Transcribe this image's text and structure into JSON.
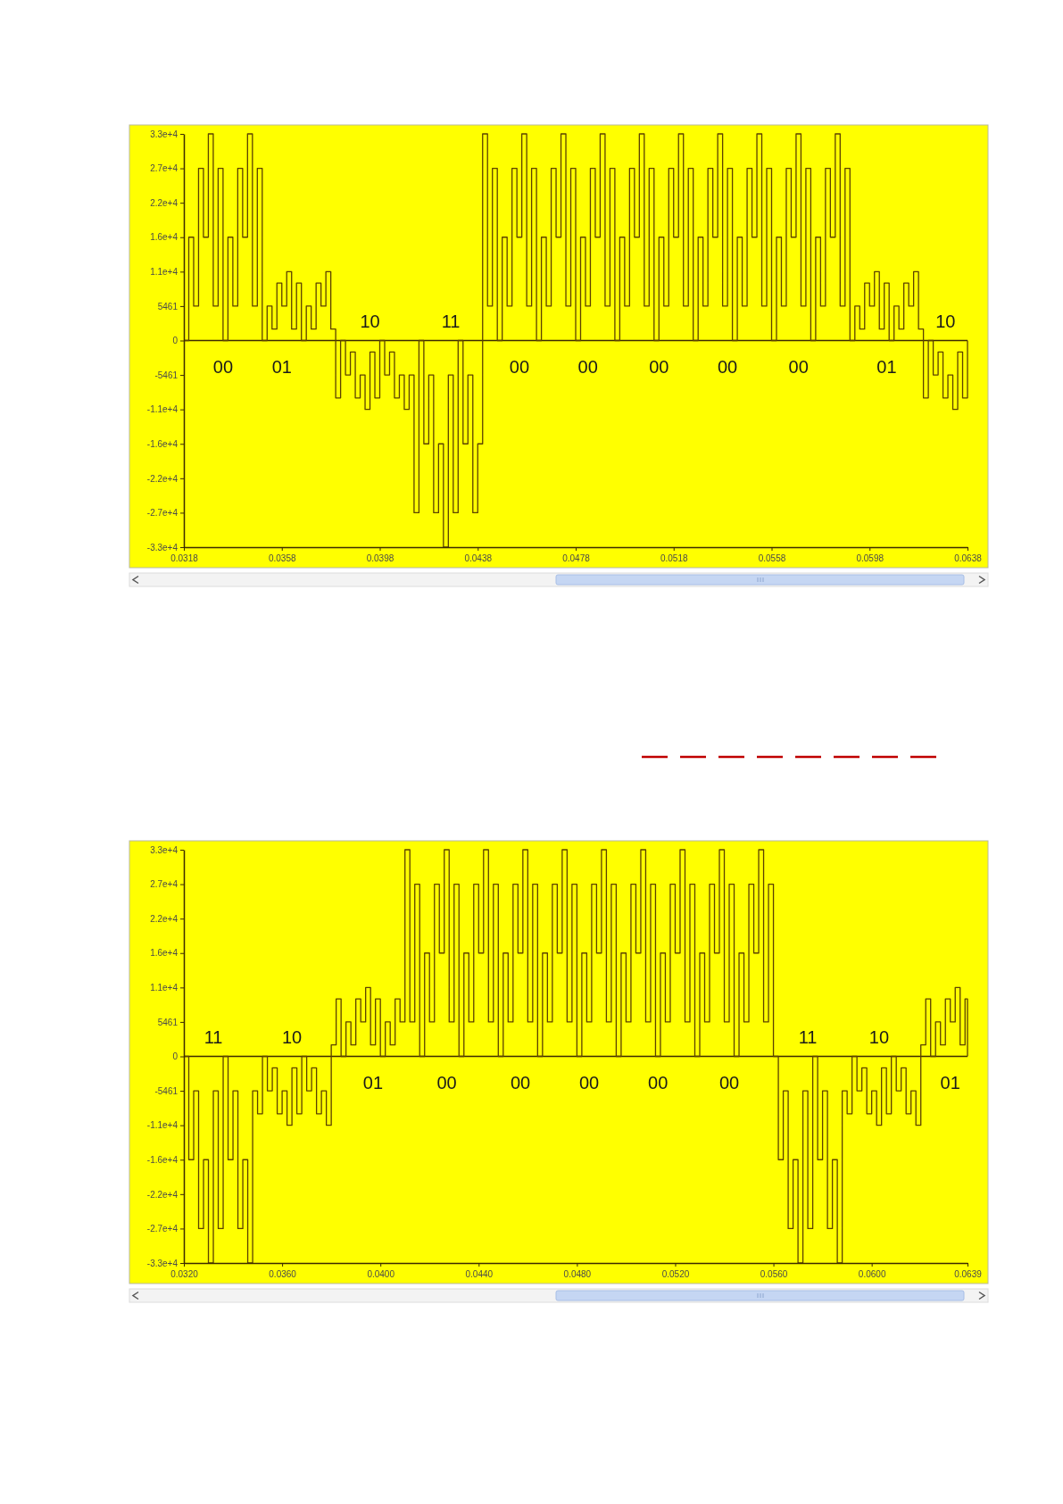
{
  "chart_data": [
    {
      "type": "step",
      "color": "#5c4200",
      "x": [
        0.0318,
        0.032,
        0.0322,
        0.0324,
        0.0326,
        0.0328,
        0.033,
        0.0332,
        0.0334,
        0.0336,
        0.0338,
        0.034,
        0.0342,
        0.0344,
        0.0346,
        0.0348,
        0.035,
        0.0352,
        0.0354,
        0.0356,
        0.0358,
        0.036,
        0.0362,
        0.0364,
        0.0366,
        0.0368,
        0.037,
        0.0372,
        0.0374,
        0.0376,
        0.0378,
        0.038,
        0.0382,
        0.0384,
        0.0386,
        0.0388,
        0.039,
        0.0392,
        0.0394,
        0.0396,
        0.0398,
        0.04,
        0.0402,
        0.0404,
        0.0406,
        0.0408,
        0.041,
        0.0412,
        0.0414,
        0.0416,
        0.0418,
        0.042,
        0.0422,
        0.0424,
        0.0426,
        0.0428,
        0.043,
        0.0432,
        0.0434,
        0.0436,
        0.0438,
        0.044,
        0.0442,
        0.0444,
        0.0446,
        0.0448,
        0.045,
        0.0452,
        0.0454,
        0.0456,
        0.0458,
        0.046,
        0.0462,
        0.0464,
        0.0466,
        0.0468,
        0.047,
        0.0472,
        0.0474,
        0.0476,
        0.0478,
        0.048,
        0.0482,
        0.0484,
        0.0486,
        0.0488,
        0.049,
        0.0492,
        0.0494,
        0.0496,
        0.0498,
        0.05,
        0.0502,
        0.0504,
        0.0506,
        0.0508,
        0.051,
        0.0512,
        0.0514,
        0.0516,
        0.0518,
        0.052,
        0.0522,
        0.0524,
        0.0526,
        0.0528,
        0.053,
        0.0532,
        0.0534,
        0.0536,
        0.0538,
        0.054,
        0.0542,
        0.0544,
        0.0546,
        0.0548,
        0.055,
        0.0552,
        0.0554,
        0.0556,
        0.0558,
        0.056,
        0.0562,
        0.0564,
        0.0566,
        0.0568,
        0.057,
        0.0572,
        0.0574,
        0.0576,
        0.0578,
        0.058,
        0.0582,
        0.0584,
        0.0586,
        0.0588,
        0.059,
        0.0592,
        0.0594,
        0.0596,
        0.0598,
        0.06,
        0.0602,
        0.0604,
        0.0606,
        0.0608,
        0.061,
        0.0612,
        0.0614,
        0.0616,
        0.0618,
        0.062,
        0.0622,
        0.0624,
        0.0626,
        0.0628,
        0.063,
        0.0632,
        0.0634,
        0.0636,
        0.0638
      ],
      "values": [
        0,
        16384,
        5461,
        27306,
        16384,
        32767,
        5461,
        27306,
        0,
        16384,
        5461,
        27306,
        16384,
        32767,
        5461,
        27306,
        0,
        5461,
        1820,
        9100,
        5461,
        10922,
        1820,
        9100,
        0,
        5461,
        1820,
        9100,
        5461,
        10922,
        1820,
        -9100,
        0,
        -5461,
        -1820,
        -9100,
        -5461,
        -10922,
        -1820,
        -9100,
        0,
        -5461,
        -1820,
        -9100,
        -5461,
        -10922,
        -5461,
        -27306,
        0,
        -16384,
        -5461,
        -27306,
        -16384,
        -32767,
        -5461,
        -27306,
        0,
        -16384,
        -5461,
        -27306,
        -16384,
        32767,
        5461,
        27306,
        0,
        16384,
        5461,
        27306,
        16384,
        32767,
        5461,
        27306,
        0,
        16384,
        5461,
        27306,
        16384,
        32767,
        5461,
        27306,
        0,
        16384,
        5461,
        27306,
        16384,
        32767,
        5461,
        27306,
        0,
        16384,
        5461,
        27306,
        16384,
        32767,
        5461,
        27306,
        0,
        16384,
        5461,
        27306,
        16384,
        32767,
        5461,
        27306,
        0,
        16384,
        5461,
        27306,
        16384,
        32767,
        5461,
        27306,
        0,
        16384,
        5461,
        27306,
        16384,
        32767,
        5461,
        27306,
        0,
        16384,
        5461,
        27306,
        16384,
        32767,
        5461,
        27306,
        0,
        16384,
        5461,
        27306,
        16384,
        32767,
        5461,
        27306,
        0,
        5461,
        1820,
        9100,
        5461,
        10922,
        1820,
        9100,
        0,
        5461,
        1820,
        9100,
        5461,
        10922,
        1820,
        -9100,
        0,
        -5461,
        -1820,
        -9100,
        -5461,
        -10922,
        -1820,
        -9100,
        0
      ],
      "xlim": [
        0.0318,
        0.0638
      ],
      "ylim": [
        -32767,
        32767
      ],
      "xticks": [
        0.0318,
        0.0358,
        0.0398,
        0.0438,
        0.0478,
        0.0518,
        0.0558,
        0.0598,
        0.0638
      ],
      "yticks": [
        {
          "value": 32767,
          "label": "3.3e+4"
        },
        {
          "value": 27306,
          "label": "2.7e+4"
        },
        {
          "value": 21845,
          "label": "2.2e+4"
        },
        {
          "value": 16384,
          "label": "1.6e+4"
        },
        {
          "value": 10922,
          "label": "1.1e+4"
        },
        5461,
        0,
        -5461,
        {
          "value": -10922,
          "label": "-1.1e+4"
        },
        {
          "value": -16384,
          "label": "-1.6e+4"
        },
        {
          "value": -21845,
          "label": "-2.2e+4"
        },
        {
          "value": -27306,
          "label": "-2.7e+4"
        },
        {
          "value": -32767,
          "label": "-3.3e+4"
        }
      ],
      "ref_lines": [
        {
          "axis": "y",
          "value": 0,
          "color": "#3d2b00"
        }
      ],
      "annotations": [
        {
          "text": "00",
          "x": 0.0334,
          "y": 0
        },
        {
          "text": "01",
          "x": 0.0358,
          "y": 0
        },
        {
          "text": "10",
          "x": 0.0394,
          "y": 0
        },
        {
          "text": "11",
          "x": 0.0427,
          "y": 0
        },
        {
          "text": "00",
          "x": 0.0455,
          "y": 0
        },
        {
          "text": "00",
          "x": 0.0483,
          "y": 0
        },
        {
          "text": "00",
          "x": 0.0512,
          "y": 0
        },
        {
          "text": "00",
          "x": 0.054,
          "y": 0
        },
        {
          "text": "00",
          "x": 0.0569,
          "y": 0
        },
        {
          "text": "01",
          "x": 0.0605,
          "y": 0
        },
        {
          "text": "10",
          "x": 0.0629,
          "y": 0
        }
      ]
    },
    {
      "type": "step",
      "color": "#5c4200",
      "x": [
        0.032,
        0.0322,
        0.0324,
        0.0326,
        0.0328,
        0.033,
        0.0332,
        0.0334,
        0.0336,
        0.0338,
        0.034,
        0.0342,
        0.0344,
        0.0346,
        0.0348,
        0.035,
        0.0352,
        0.0354,
        0.0356,
        0.0358,
        0.036,
        0.0362,
        0.0364,
        0.0366,
        0.0368,
        0.037,
        0.0372,
        0.0374,
        0.0376,
        0.0378,
        0.038,
        0.0382,
        0.0384,
        0.0386,
        0.0388,
        0.039,
        0.0392,
        0.0394,
        0.0396,
        0.0398,
        0.04,
        0.0402,
        0.0404,
        0.0406,
        0.0408,
        0.041,
        0.0412,
        0.0414,
        0.0416,
        0.0418,
        0.042,
        0.0422,
        0.0424,
        0.0426,
        0.0428,
        0.043,
        0.0432,
        0.0434,
        0.0436,
        0.0438,
        0.044,
        0.0442,
        0.0444,
        0.0446,
        0.0448,
        0.045,
        0.0452,
        0.0454,
        0.0456,
        0.0458,
        0.046,
        0.0462,
        0.0464,
        0.0466,
        0.0468,
        0.047,
        0.0472,
        0.0474,
        0.0476,
        0.0478,
        0.048,
        0.0482,
        0.0484,
        0.0486,
        0.0488,
        0.049,
        0.0492,
        0.0494,
        0.0496,
        0.0498,
        0.05,
        0.0502,
        0.0504,
        0.0506,
        0.0508,
        0.051,
        0.0512,
        0.0514,
        0.0516,
        0.0518,
        0.052,
        0.0522,
        0.0524,
        0.0526,
        0.0528,
        0.053,
        0.0532,
        0.0534,
        0.0536,
        0.0538,
        0.054,
        0.0542,
        0.0544,
        0.0546,
        0.0548,
        0.055,
        0.0552,
        0.0554,
        0.0556,
        0.0558,
        0.056,
        0.0562,
        0.0564,
        0.0566,
        0.0568,
        0.057,
        0.0572,
        0.0574,
        0.0576,
        0.0578,
        0.058,
        0.0582,
        0.0584,
        0.0586,
        0.0588,
        0.059,
        0.0592,
        0.0594,
        0.0596,
        0.0598,
        0.06,
        0.0602,
        0.0604,
        0.0606,
        0.0608,
        0.061,
        0.0612,
        0.0614,
        0.0616,
        0.0618,
        0.062,
        0.0622,
        0.0624,
        0.0626,
        0.0628,
        0.063,
        0.0632,
        0.0634,
        0.0636,
        0.0638,
        0.0639
      ],
      "values": [
        0,
        -16384,
        -5461,
        -27306,
        -16384,
        -32767,
        -5461,
        -27306,
        0,
        -16384,
        -5461,
        -27306,
        -16384,
        -32767,
        -5461,
        -9100,
        0,
        -5461,
        -1820,
        -9100,
        -5461,
        -10922,
        -1820,
        -9100,
        0,
        -5461,
        -1820,
        -9100,
        -5461,
        -10922,
        1820,
        9100,
        0,
        5461,
        1820,
        9100,
        5461,
        10922,
        1820,
        9100,
        0,
        5461,
        1820,
        9100,
        5461,
        32767,
        5461,
        27306,
        0,
        16384,
        5461,
        27306,
        16384,
        32767,
        5461,
        27306,
        0,
        16384,
        5461,
        27306,
        16384,
        32767,
        5461,
        27306,
        0,
        16384,
        5461,
        27306,
        16384,
        32767,
        5461,
        27306,
        0,
        16384,
        5461,
        27306,
        16384,
        32767,
        5461,
        27306,
        0,
        16384,
        5461,
        27306,
        16384,
        32767,
        5461,
        27306,
        0,
        16384,
        5461,
        27306,
        16384,
        32767,
        5461,
        27306,
        0,
        16384,
        5461,
        27306,
        16384,
        32767,
        5461,
        27306,
        0,
        16384,
        5461,
        27306,
        16384,
        32767,
        5461,
        27306,
        0,
        16384,
        5461,
        27306,
        16384,
        32767,
        5461,
        27306,
        0,
        -16384,
        -5461,
        -27306,
        -16384,
        -32767,
        -5461,
        -27306,
        0,
        -16384,
        -5461,
        -27306,
        -16384,
        -32767,
        -5461,
        -9100,
        0,
        -5461,
        -1820,
        -9100,
        -5461,
        -10922,
        -1820,
        -9100,
        0,
        -5461,
        -1820,
        -9100,
        -5461,
        -10922,
        1820,
        9100,
        0,
        5461,
        1820,
        9100,
        5461,
        10922,
        1820,
        9100,
        0
      ],
      "xlim": [
        0.032,
        0.0639
      ],
      "ylim": [
        -32767,
        32767
      ],
      "xticks": [
        {
          "value": 0.032,
          "label": "0.0320"
        },
        {
          "value": 0.036,
          "label": "0.0360"
        },
        {
          "value": 0.04,
          "label": "0.0400"
        },
        {
          "value": 0.044,
          "label": "0.0440"
        },
        {
          "value": 0.048,
          "label": "0.0480"
        },
        {
          "value": 0.052,
          "label": "0.0520"
        },
        {
          "value": 0.056,
          "label": "0.0560"
        },
        {
          "value": 0.06,
          "label": "0.0600"
        },
        0.0639
      ],
      "yticks": [
        {
          "value": 32767,
          "label": "3.3e+4"
        },
        {
          "value": 27306,
          "label": "2.7e+4"
        },
        {
          "value": 21845,
          "label": "2.2e+4"
        },
        {
          "value": 16384,
          "label": "1.6e+4"
        },
        {
          "value": 10922,
          "label": "1.1e+4"
        },
        5461,
        0,
        -5461,
        {
          "value": -10922,
          "label": "-1.1e+4"
        },
        {
          "value": -16384,
          "label": "-1.6e+4"
        },
        {
          "value": -21845,
          "label": "-2.2e+4"
        },
        {
          "value": -27306,
          "label": "-2.7e+4"
        },
        {
          "value": -32767,
          "label": "-3.3e+4"
        }
      ],
      "ref_lines": [
        {
          "axis": "y",
          "value": 0,
          "color": "#3d2b00"
        }
      ],
      "annotations": [
        {
          "text": "11",
          "x": 0.0332,
          "y": 0
        },
        {
          "text": "10",
          "x": 0.0364,
          "y": 0
        },
        {
          "text": "01",
          "x": 0.0397,
          "y": 0
        },
        {
          "text": "00",
          "x": 0.0427,
          "y": 0
        },
        {
          "text": "00",
          "x": 0.0457,
          "y": 0
        },
        {
          "text": "00",
          "x": 0.0485,
          "y": 0
        },
        {
          "text": "00",
          "x": 0.0513,
          "y": 0
        },
        {
          "text": "00",
          "x": 0.0542,
          "y": 0
        },
        {
          "text": "11",
          "x": 0.0574,
          "y": 0
        },
        {
          "text": "10",
          "x": 0.0603,
          "y": 0
        },
        {
          "text": "01",
          "x": 0.0632,
          "y": 0
        }
      ]
    }
  ]
}
